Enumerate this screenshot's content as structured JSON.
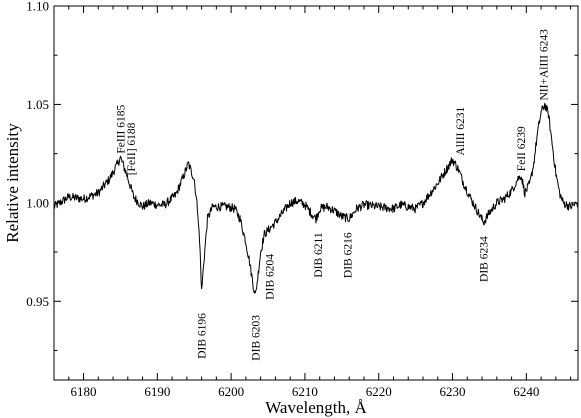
{
  "chart_data": {
    "type": "line",
    "xlabel": "Wavelength, Å",
    "ylabel": "Relative intensity",
    "xlim": [
      6176,
      6247
    ],
    "ylim": [
      0.91,
      1.1
    ],
    "x_ticks": [
      6180,
      6190,
      6200,
      6210,
      6220,
      6230,
      6240
    ],
    "x_tick_labels": [
      "6180",
      "6190",
      "6200",
      "6210",
      "6220",
      "6230",
      "6240"
    ],
    "y_ticks": [
      0.95,
      1.0,
      1.05,
      1.1
    ],
    "y_tick_labels": [
      "0.95",
      "1.00",
      "1.05",
      "1.10"
    ],
    "grid": false,
    "legend": "none",
    "series": [
      {
        "color": "#000000",
        "x": [
          6176.0,
          6178.0,
          6180.0,
          6182.0,
          6183.5,
          6184.5,
          6185.0,
          6185.8,
          6186.8,
          6188.0,
          6189.0,
          6190.0,
          6191.0,
          6192.5,
          6193.5,
          6194.2,
          6195.0,
          6195.5,
          6195.8,
          6196.0,
          6196.3,
          6196.8,
          6197.5,
          6198.5,
          6199.5,
          6200.5,
          6201.2,
          6202.0,
          6202.5,
          6203.0,
          6203.3,
          6203.6,
          6204.0,
          6204.5,
          6205.0,
          6206.0,
          6207.0,
          6208.0,
          6209.0,
          6210.0,
          6211.0,
          6211.5,
          6212.0,
          6213.0,
          6214.0,
          6215.0,
          6216.0,
          6217.0,
          6218.0,
          6220.0,
          6222.0,
          6223.0,
          6224.0,
          6225.0,
          6226.0,
          6227.0,
          6228.0,
          6229.0,
          6230.0,
          6230.8,
          6231.5,
          6232.5,
          6233.5,
          6234.2,
          6235.0,
          6236.0,
          6237.0,
          6238.0,
          6238.8,
          6239.3,
          6239.8,
          6240.5,
          6241.0,
          6241.5,
          6242.0,
          6242.5,
          6243.0,
          6243.5,
          6244.0,
          6244.5,
          6245.0,
          6246.0,
          6247.0
        ],
        "y": [
          0.998,
          1.003,
          1.002,
          1.005,
          1.012,
          1.019,
          1.023,
          1.015,
          1.003,
          0.998,
          1.0,
          0.999,
          0.999,
          1.004,
          1.013,
          1.02,
          1.012,
          0.995,
          0.975,
          0.955,
          0.97,
          0.992,
          0.998,
          0.998,
          0.998,
          0.997,
          0.992,
          0.98,
          0.97,
          0.958,
          0.953,
          0.962,
          0.975,
          0.984,
          0.986,
          0.99,
          0.995,
          1.0,
          1.001,
          0.999,
          0.994,
          0.992,
          0.997,
          0.998,
          0.996,
          0.993,
          0.992,
          0.997,
          0.999,
          0.998,
          0.997,
          0.999,
          0.998,
          0.997,
          1.0,
          1.005,
          1.01,
          1.016,
          1.022,
          1.017,
          1.01,
          1.002,
          0.995,
          0.99,
          0.995,
          1.0,
          1.002,
          1.006,
          1.012,
          1.014,
          1.005,
          1.01,
          1.02,
          1.035,
          1.046,
          1.05,
          1.045,
          1.03,
          1.015,
          1.005,
          1.0,
          0.998,
          1.0
        ]
      }
    ],
    "annotations": [
      {
        "text": "FeIII 6185",
        "x": 6185.0,
        "y": 1.025,
        "anchor": "above"
      },
      {
        "text": "[FeII] 6188",
        "x": 6186.4,
        "y": 1.014,
        "anchor": "above"
      },
      {
        "text": "DIB 6196",
        "x": 6196.0,
        "y": 0.944,
        "anchor": "below"
      },
      {
        "text": "DIB 6203",
        "x": 6203.3,
        "y": 0.943,
        "anchor": "below"
      },
      {
        "text": "DIB 6204",
        "x": 6205.2,
        "y": 0.974,
        "anchor": "below"
      },
      {
        "text": "DIB 6211",
        "x": 6211.8,
        "y": 0.985,
        "anchor": "below"
      },
      {
        "text": "DIB 6216",
        "x": 6215.8,
        "y": 0.985,
        "anchor": "below"
      },
      {
        "text": "AlIII 6231",
        "x": 6231.0,
        "y": 1.024,
        "anchor": "above"
      },
      {
        "text": "DIB 6234",
        "x": 6234.2,
        "y": 0.983,
        "anchor": "below"
      },
      {
        "text": "FeII 6239",
        "x": 6239.3,
        "y": 1.016,
        "anchor": "above"
      },
      {
        "text": "NII+AlIII 6243",
        "x": 6242.3,
        "y": 1.052,
        "anchor": "above"
      }
    ]
  }
}
